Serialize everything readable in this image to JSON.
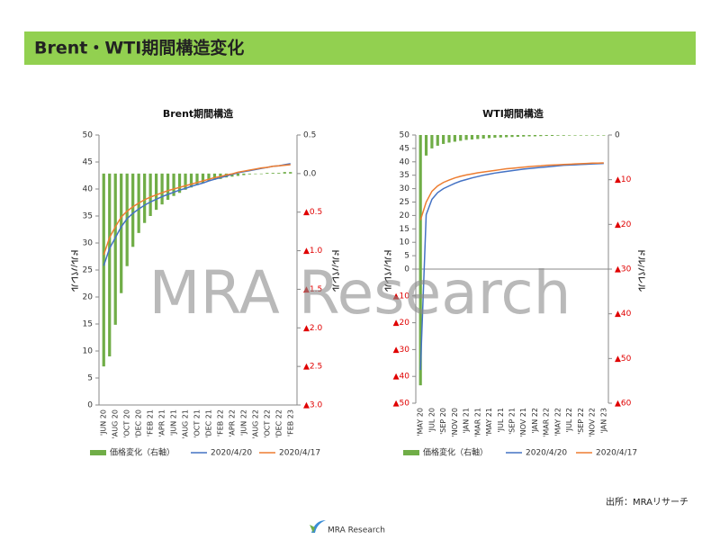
{
  "title": "Brent・WTI期間構造変化",
  "watermark": "MRA Research",
  "source": "出所：MRAリサーチ",
  "logo": "MRA Research",
  "chart_data": [
    {
      "type": "bar",
      "title": "Brent期間構造",
      "y_label": "ドル/バレル",
      "y2_label": "ドル/バレル",
      "categories": [
        "'JUN 20",
        null,
        "'AUG 20",
        null,
        "'OCT 20",
        null,
        "'DEC 20",
        null,
        "'FEB 21",
        null,
        "'APR 21",
        null,
        "'JUN 21",
        null,
        "'AUG 21",
        null,
        "'OCT 21",
        null,
        "'DEC 21",
        null,
        "'FEB 22",
        null,
        "'APR 22",
        null,
        "'JUN 22",
        null,
        "'AUG 22",
        null,
        "'OCT 22",
        null,
        "'DEC 22",
        null,
        "'FEB 23"
      ],
      "ylim": [
        0,
        50
      ],
      "yticks": [
        0,
        5,
        10,
        15,
        20,
        25,
        30,
        35,
        40,
        45,
        50
      ],
      "y2lim": [
        -3,
        0.5
      ],
      "y2ticks": [
        0.5,
        {
          "value": 0,
          "label": "0.0"
        },
        {
          "value": -0.5,
          "label": "▲0.5"
        },
        {
          "value": -1,
          "label": "▲1.0"
        },
        {
          "value": -1.5,
          "label": "▲1.5"
        },
        {
          "value": -2,
          "label": "▲2.0"
        },
        {
          "value": -2.5,
          "label": "▲2.5"
        },
        {
          "value": -3,
          "label": "▲3.0"
        }
      ],
      "series": [
        {
          "name": "価格変化（右軸）",
          "type": "bar",
          "axis": "y2",
          "color": "#70ad47",
          "values": [
            -2.5,
            -2.37,
            -1.96,
            -1.55,
            -1.2,
            -0.95,
            -0.77,
            -0.64,
            -0.55,
            -0.47,
            -0.4,
            -0.34,
            -0.29,
            -0.25,
            -0.21,
            -0.18,
            -0.15,
            -0.12,
            -0.1,
            -0.08,
            -0.07,
            -0.05,
            -0.04,
            -0.03,
            -0.02,
            -0.01,
            0,
            0,
            0.01,
            0.01,
            0.01,
            0.02,
            0.02
          ]
        },
        {
          "name": "2020/4/20",
          "type": "line",
          "color": "#4472c4",
          "values": [
            25.8,
            29,
            31,
            33,
            34.5,
            35.5,
            36.3,
            37,
            37.6,
            38.1,
            38.6,
            39,
            39.4,
            39.8,
            40.1,
            40.5,
            40.8,
            41.1,
            41.5,
            41.8,
            42.1,
            42.4,
            42.7,
            43,
            43.2,
            43.4,
            43.6,
            43.8,
            44,
            44.2,
            44.3,
            44.5,
            44.7
          ]
        },
        {
          "name": "2020/4/17",
          "type": "line",
          "color": "#ed7d31",
          "values": [
            27.8,
            31,
            33,
            34.8,
            35.9,
            36.7,
            37.4,
            38,
            38.5,
            38.9,
            39.3,
            39.7,
            40,
            40.3,
            40.6,
            40.9,
            41.2,
            41.5,
            41.8,
            42.1,
            42.3,
            42.6,
            42.8,
            43.1,
            43.3,
            43.5,
            43.7,
            43.9,
            44,
            44.2,
            44.3,
            44.4,
            44.5
          ]
        }
      ]
    },
    {
      "type": "bar",
      "title": "WTI期間構造",
      "y_label": "ドル/バレル",
      "y2_label": "ドル/バレル",
      "categories": [
        "'MAY 20",
        null,
        "'JUL 20",
        null,
        "'SEP 20",
        null,
        "'NOV 20",
        null,
        "'JAN 21",
        null,
        "'MAR 21",
        null,
        "'MAY 21",
        null,
        "'JUL 21",
        null,
        "'SEP 21",
        null,
        "'NOV 21",
        null,
        "'JAN 22",
        null,
        "'MAR 22",
        null,
        "'MAY 22",
        null,
        "'JUL 22",
        null,
        "'SEP 22",
        null,
        "'NOV 22",
        null,
        "'JAN 23"
      ],
      "ylim": [
        -50,
        50
      ],
      "yticks": [
        50,
        45,
        40,
        35,
        30,
        25,
        20,
        15,
        10,
        5,
        0,
        {
          "value": -10,
          "label": "▲10"
        },
        {
          "value": -20,
          "label": "▲20"
        },
        {
          "value": -30,
          "label": "▲30"
        },
        {
          "value": -40,
          "label": "▲40"
        },
        {
          "value": -50,
          "label": "▲50"
        }
      ],
      "y2lim": [
        -60,
        0
      ],
      "y2ticks": [
        0,
        {
          "value": -10,
          "label": "▲10"
        },
        {
          "value": -20,
          "label": "▲20"
        },
        {
          "value": -30,
          "label": "▲30"
        },
        {
          "value": -40,
          "label": "▲40"
        },
        {
          "value": -50,
          "label": "▲50"
        },
        {
          "value": -60,
          "label": "▲60"
        }
      ],
      "series": [
        {
          "name": "価格変化（右軸）",
          "type": "bar",
          "axis": "y2",
          "color": "#70ad47",
          "values": [
            -56,
            -4.6,
            -3,
            -2.4,
            -2,
            -1.7,
            -1.5,
            -1.3,
            -1.1,
            -1,
            -0.9,
            -0.8,
            -0.7,
            -0.6,
            -0.55,
            -0.5,
            -0.45,
            -0.4,
            -0.35,
            -0.3,
            -0.3,
            -0.25,
            -0.2,
            -0.2,
            -0.15,
            -0.15,
            -0.1,
            -0.1,
            -0.1,
            -0.05,
            -0.05,
            -0.05,
            -0.05
          ]
        },
        {
          "name": "2020/4/20",
          "type": "line",
          "color": "#4472c4",
          "values": [
            -37.6,
            20.3,
            26,
            28.5,
            30,
            31,
            32,
            32.8,
            33.4,
            34,
            34.5,
            35,
            35.4,
            35.8,
            36.1,
            36.4,
            36.7,
            37,
            37.3,
            37.5,
            37.7,
            37.9,
            38.1,
            38.3,
            38.5,
            38.7,
            38.8,
            38.9,
            39,
            39.1,
            39.2,
            39.3,
            39.4
          ]
        },
        {
          "name": "2020/4/17",
          "type": "line",
          "color": "#ed7d31",
          "values": [
            18.3,
            25,
            29,
            31,
            32.3,
            33.2,
            34,
            34.6,
            35.1,
            35.5,
            35.9,
            36.2,
            36.5,
            36.8,
            37.1,
            37.4,
            37.6,
            37.8,
            38,
            38.2,
            38.4,
            38.5,
            38.7,
            38.8,
            38.9,
            39,
            39.1,
            39.2,
            39.3,
            39.4,
            39.5,
            39.5,
            39.6
          ]
        }
      ]
    }
  ]
}
